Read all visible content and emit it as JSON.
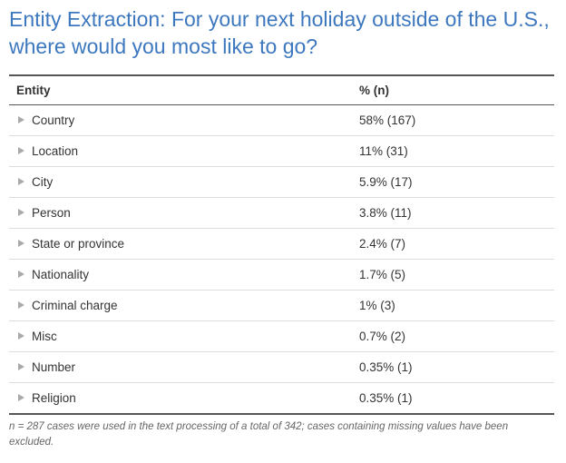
{
  "title": "Entity Extraction: For your next holiday outside of the U.S., where would you most like to go?",
  "table": {
    "columns": [
      "Entity",
      "% (n)"
    ],
    "rows": [
      [
        "Country",
        "58% (167)"
      ],
      [
        "Location",
        "11% (31)"
      ],
      [
        "City",
        "5.9% (17)"
      ],
      [
        "Person",
        "3.8% (11)"
      ],
      [
        "State or province",
        "2.4% (7)"
      ],
      [
        "Nationality",
        "1.7% (5)"
      ],
      [
        "Criminal charge",
        "1% (3)"
      ],
      [
        "Misc",
        "0.7% (2)"
      ],
      [
        "Number",
        "0.35% (1)"
      ],
      [
        "Religion",
        "0.35% (1)"
      ]
    ]
  },
  "footnote": "n = 287 cases were used in the text processing of a total of 342; cases containing missing values have been excluded."
}
